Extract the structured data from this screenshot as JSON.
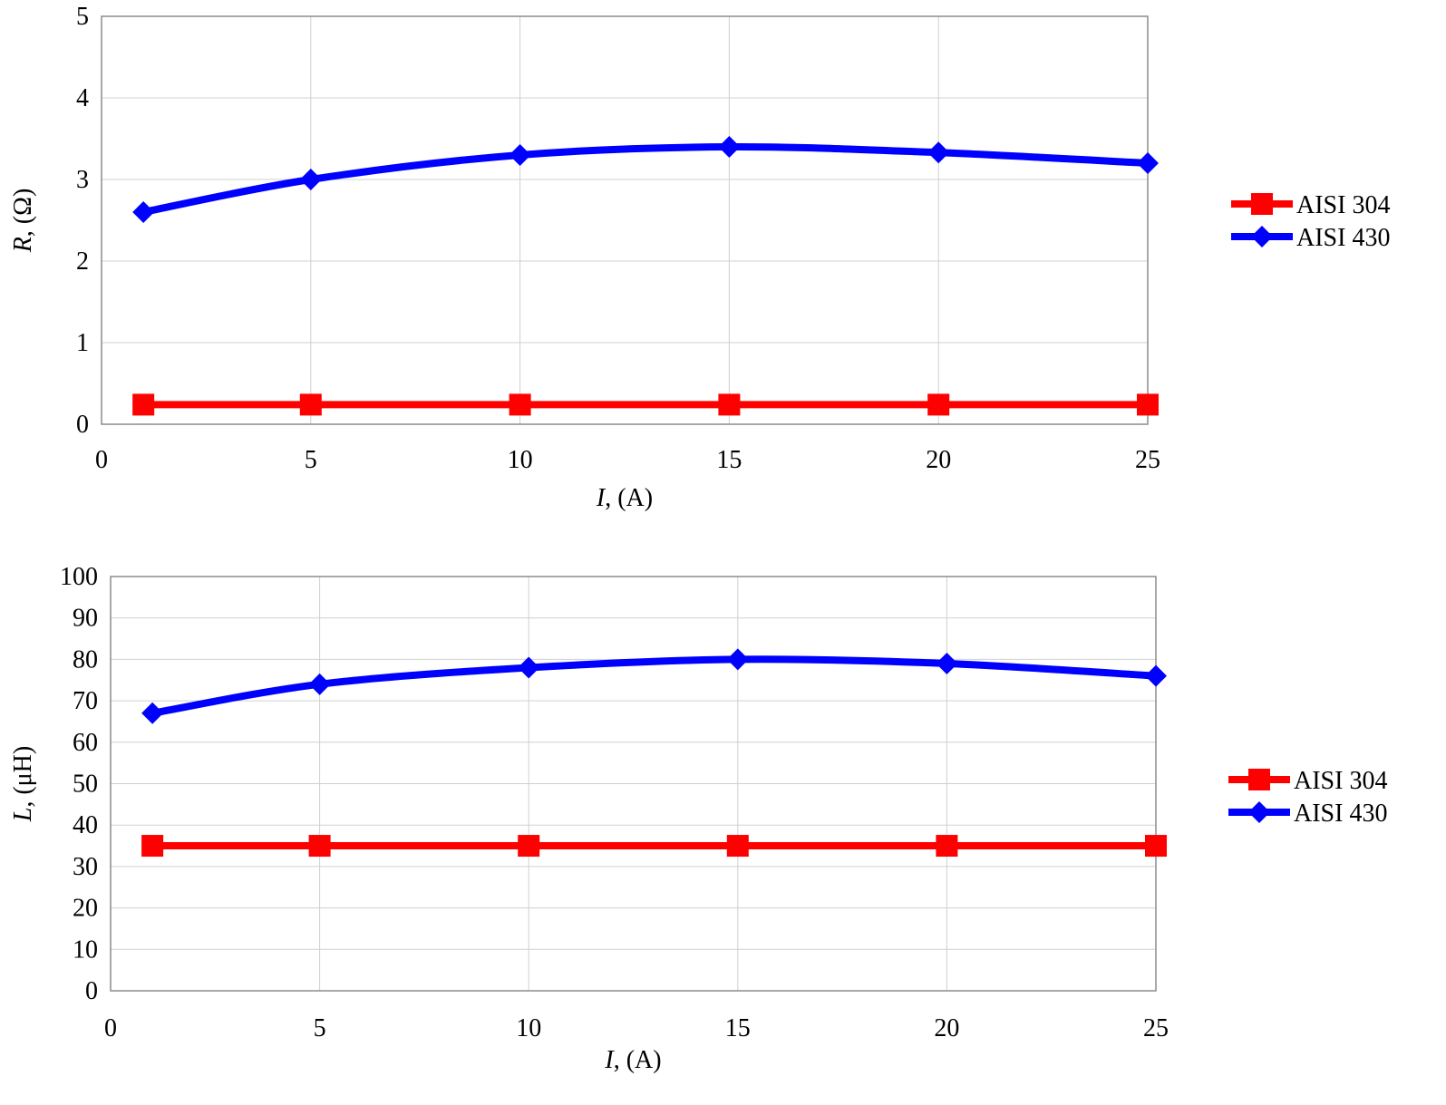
{
  "chart_data": [
    {
      "type": "line",
      "xlabel": {
        "symbol": "I",
        "unit": ", (A)"
      },
      "ylabel": {
        "symbol": "R",
        "unit": ", (Ω)"
      },
      "xlim": [
        0,
        25
      ],
      "ylim": [
        0,
        5
      ],
      "xticks": [
        "0",
        "5",
        "10",
        "15",
        "20",
        "25"
      ],
      "yticks": [
        "0",
        "1",
        "2",
        "3",
        "4",
        "5"
      ],
      "grid": true,
      "legend_position": "right",
      "x": [
        1,
        5,
        10,
        15,
        20,
        25
      ],
      "series": [
        {
          "name": "AISI 304",
          "marker": "square",
          "color": "#ff0000",
          "values": [
            0.24,
            0.24,
            0.24,
            0.24,
            0.24,
            0.24
          ]
        },
        {
          "name": "AISI 430",
          "marker": "diamond",
          "color": "#0000ff",
          "values": [
            2.6,
            3.0,
            3.3,
            3.4,
            3.33,
            3.2
          ]
        }
      ]
    },
    {
      "type": "line",
      "xlabel": {
        "symbol": "I",
        "unit": ", (A)"
      },
      "ylabel": {
        "symbol": "L",
        "unit": ", (μH)"
      },
      "xlim": [
        0,
        25
      ],
      "ylim": [
        0,
        100
      ],
      "xticks": [
        "0",
        "5",
        "10",
        "15",
        "20",
        "25"
      ],
      "yticks": [
        "0",
        "10",
        "20",
        "30",
        "40",
        "50",
        "60",
        "70",
        "80",
        "90",
        "100"
      ],
      "grid": true,
      "legend_position": "right",
      "x": [
        1,
        5,
        10,
        15,
        20,
        25
      ],
      "series": [
        {
          "name": "AISI 304",
          "marker": "square",
          "color": "#ff0000",
          "values": [
            35,
            35,
            35,
            35,
            35,
            35
          ]
        },
        {
          "name": "AISI 430",
          "marker": "diamond",
          "color": "#0000ff",
          "values": [
            67,
            74,
            78,
            80,
            79,
            76
          ]
        }
      ]
    }
  ]
}
